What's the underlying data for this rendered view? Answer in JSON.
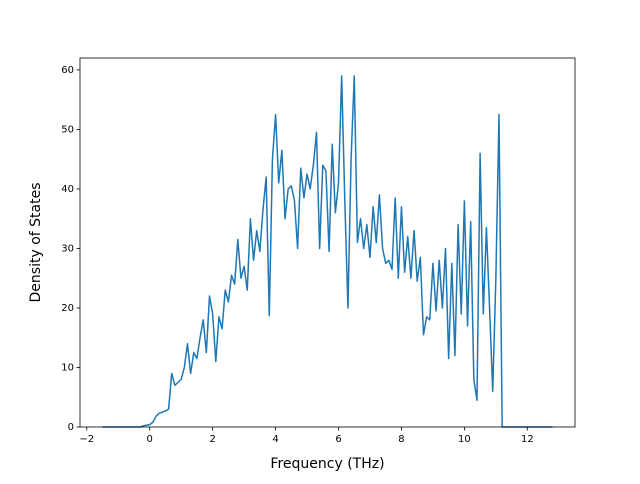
{
  "chart_data": {
    "type": "line",
    "xlabel": "Frequency (THz)",
    "ylabel": "Density of States",
    "x": [
      -1.5,
      -1.4,
      -1.3,
      -1.2,
      -1.1,
      -1.0,
      -0.9,
      -0.8,
      -0.7,
      -0.6,
      -0.5,
      -0.4,
      -0.3,
      -0.2,
      -0.1,
      0.0,
      0.1,
      0.2,
      0.3,
      0.4,
      0.5,
      0.6,
      0.7,
      0.8,
      0.9,
      1.0,
      1.1,
      1.2,
      1.3,
      1.4,
      1.5,
      1.6,
      1.7,
      1.8,
      1.9,
      2.0,
      2.1,
      2.2,
      2.3,
      2.4,
      2.5,
      2.6,
      2.7,
      2.8,
      2.9,
      3.0,
      3.1,
      3.2,
      3.3,
      3.4,
      3.5,
      3.6,
      3.7,
      3.8,
      3.9,
      4.0,
      4.1,
      4.2,
      4.3,
      4.4,
      4.5,
      4.6,
      4.7,
      4.8,
      4.9,
      5.0,
      5.1,
      5.2,
      5.3,
      5.4,
      5.5,
      5.6,
      5.7,
      5.8,
      5.9,
      6.0,
      6.1,
      6.2,
      6.3,
      6.4,
      6.5,
      6.6,
      6.7,
      6.8,
      6.9,
      7.0,
      7.1,
      7.2,
      7.3,
      7.4,
      7.5,
      7.6,
      7.7,
      7.8,
      7.9,
      8.0,
      8.1,
      8.2,
      8.3,
      8.4,
      8.5,
      8.6,
      8.7,
      8.8,
      8.9,
      9.0,
      9.1,
      9.2,
      9.3,
      9.4,
      9.5,
      9.6,
      9.7,
      9.8,
      9.9,
      10.0,
      10.1,
      10.2,
      10.3,
      10.4,
      10.5,
      10.6,
      10.7,
      10.8,
      10.9,
      11.0,
      11.1,
      11.2,
      11.3,
      11.4,
      11.5,
      11.6,
      11.7,
      11.8,
      11.9,
      12.0,
      12.1,
      12.2,
      12.3,
      12.4,
      12.5,
      12.6,
      12.7,
      12.8
    ],
    "series": [
      {
        "color": "#1f77b4",
        "values": [
          0,
          0,
          0,
          0,
          0,
          0,
          0,
          0,
          0,
          0,
          0,
          0,
          0,
          0.2,
          0.3,
          0.4,
          0.8,
          1.8,
          2.3,
          2.5,
          2.7,
          3.0,
          9.0,
          7.0,
          7.5,
          8.0,
          10,
          14,
          9,
          12.5,
          11.5,
          15,
          18,
          12.5,
          22,
          19,
          11,
          18.5,
          16.5,
          23,
          21,
          25.5,
          24,
          31.5,
          25,
          27,
          23,
          35,
          28,
          33,
          29.5,
          36.5,
          42,
          18.7,
          45,
          52.5,
          41,
          46.5,
          35,
          40,
          40.5,
          38,
          30,
          43.5,
          38.5,
          42.5,
          40,
          44,
          49.5,
          30,
          44,
          43,
          29.5,
          47.5,
          36,
          41,
          59,
          38,
          20,
          45,
          59,
          31,
          35,
          30,
          34,
          28.5,
          37,
          31,
          39,
          30,
          27.5,
          28,
          26.5,
          38.5,
          25,
          37,
          26,
          32,
          25,
          33,
          24.5,
          28.5,
          15.5,
          18.5,
          18,
          27.5,
          19.5,
          28,
          20,
          30,
          11.5,
          27.5,
          12,
          34,
          19,
          38,
          17,
          34.5,
          8,
          4.5,
          46,
          19,
          33.5,
          20,
          6,
          25,
          52.5,
          0,
          0,
          0,
          0,
          0,
          0,
          0,
          0,
          0,
          0,
          0,
          0,
          0,
          0,
          0,
          0,
          0
        ]
      }
    ],
    "xlim": [
      -2.215,
      13.515
    ],
    "xticks": [
      {
        "value": -2,
        "label": "−2"
      },
      0,
      2,
      4,
      6,
      8,
      10,
      12
    ],
    "ylim": [
      0,
      62
    ],
    "yticks": [
      0,
      10,
      20,
      30,
      40,
      50,
      60
    ]
  }
}
